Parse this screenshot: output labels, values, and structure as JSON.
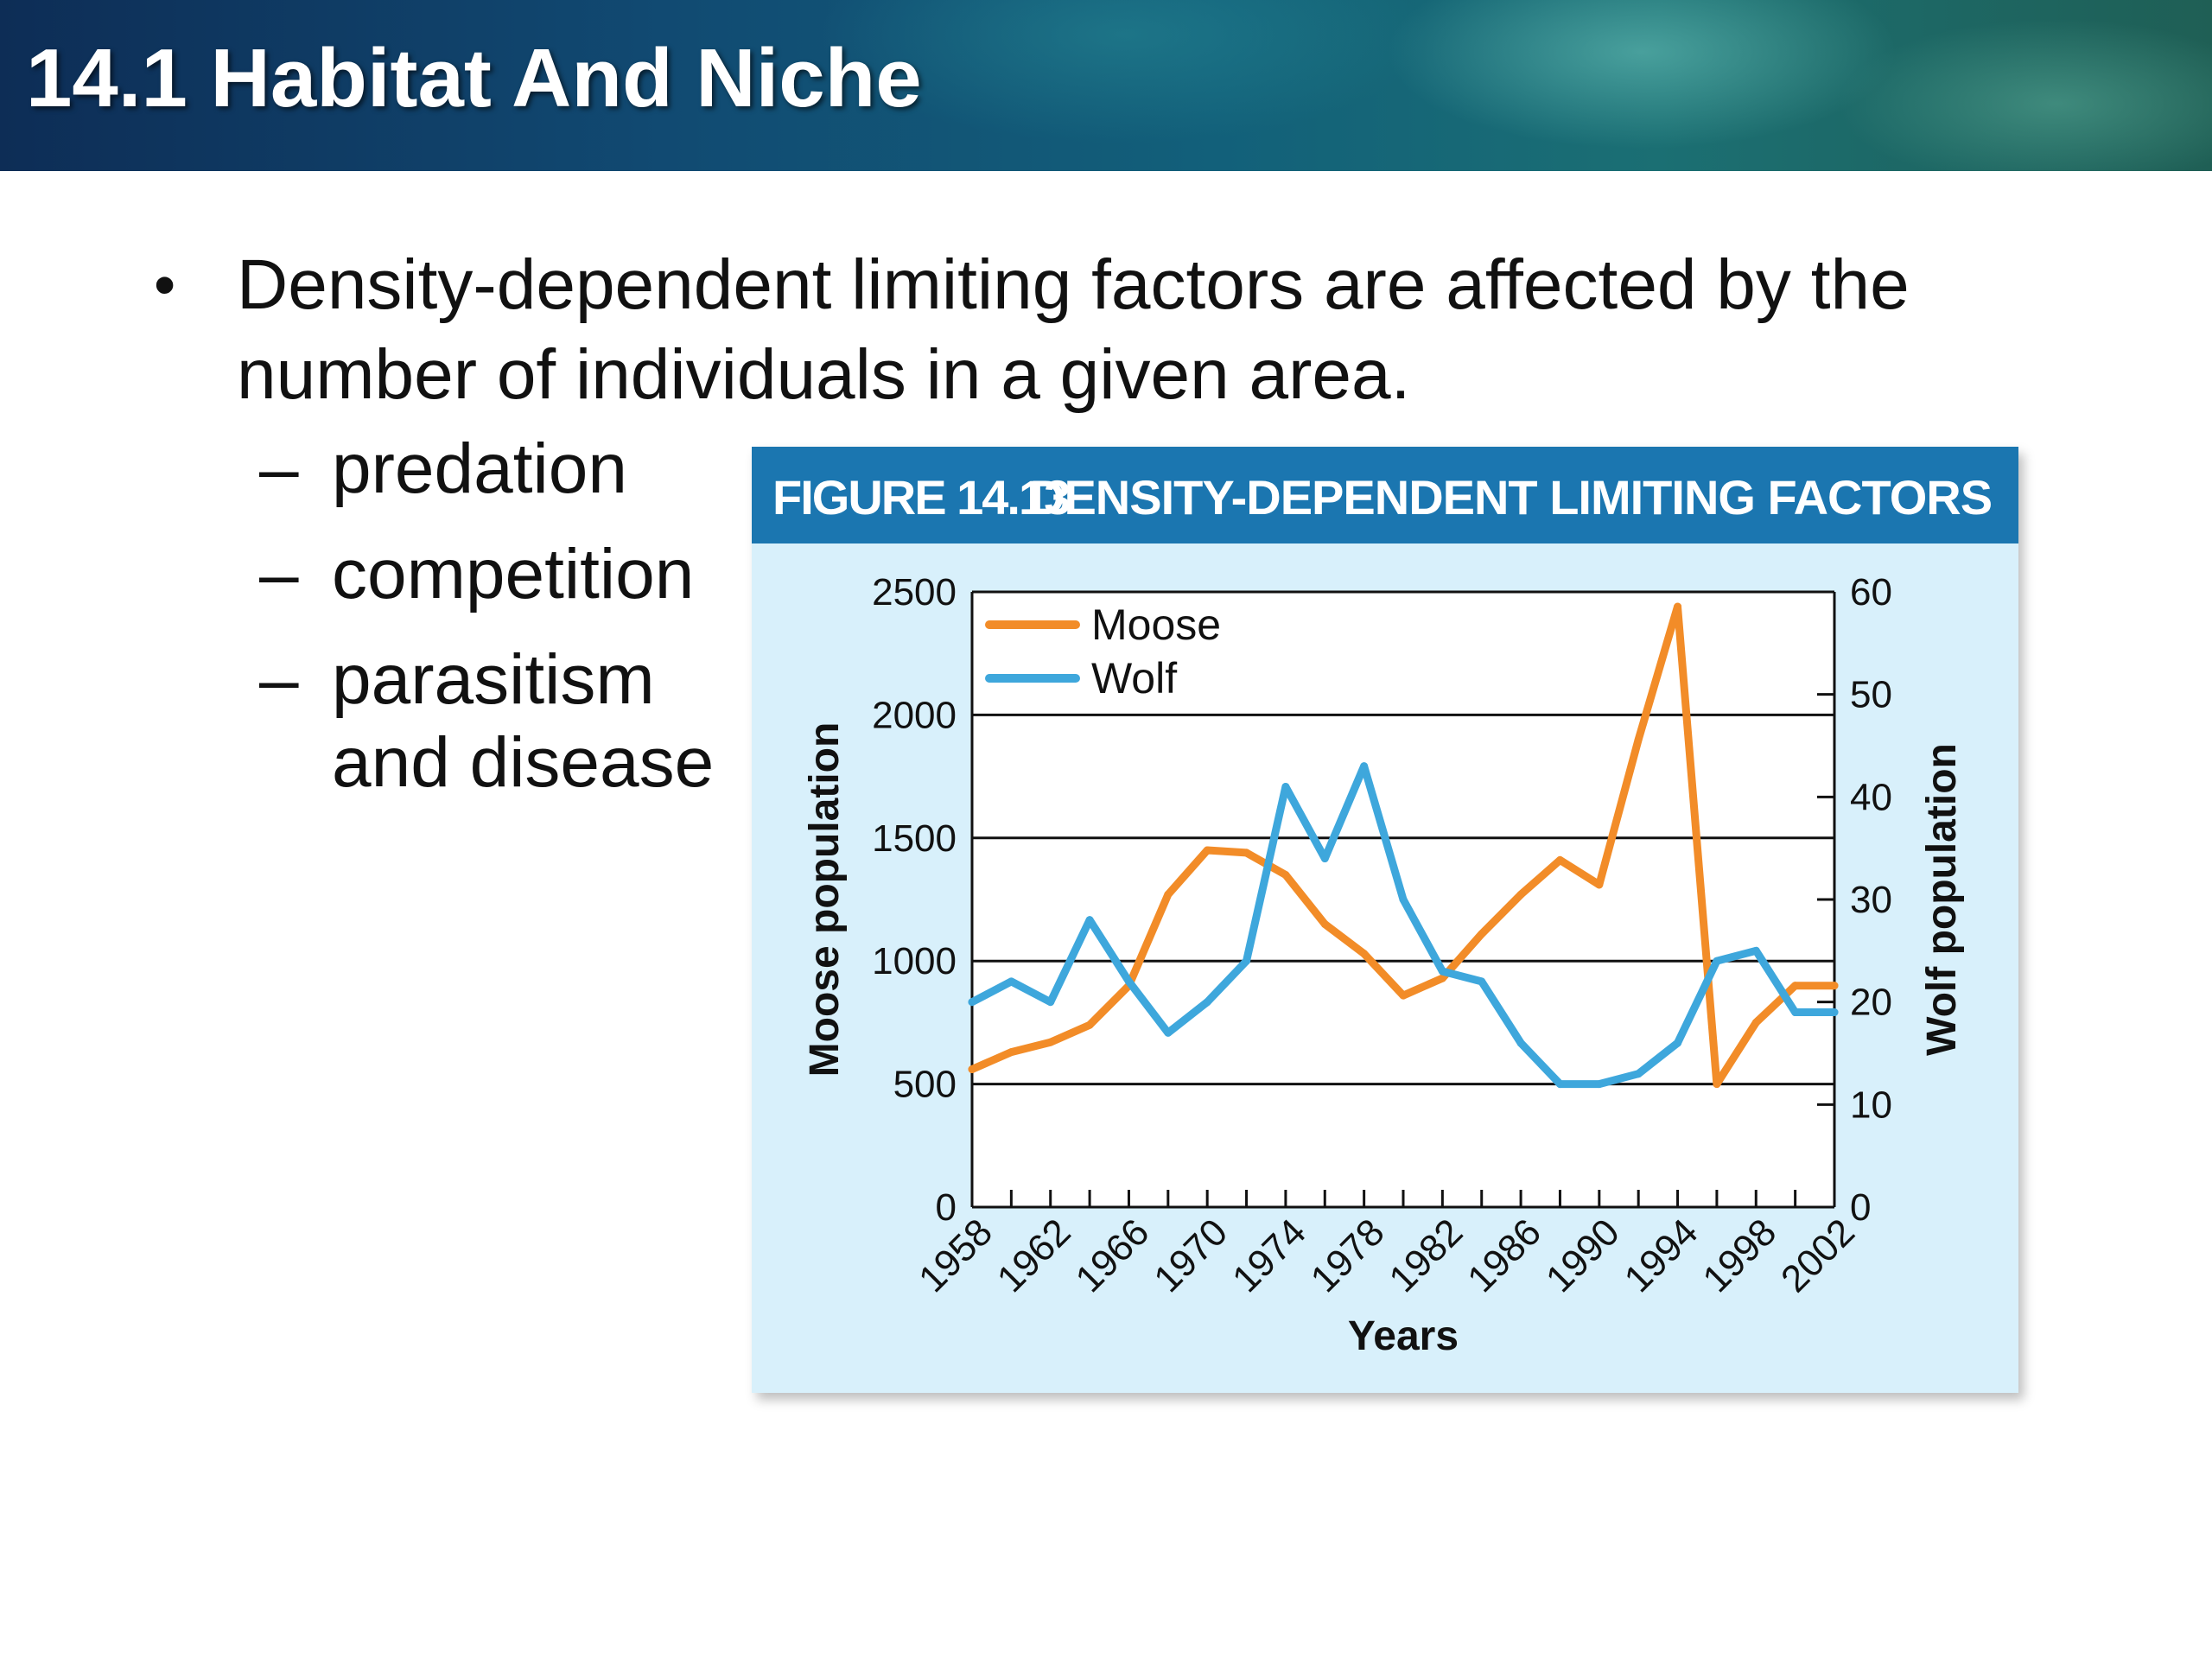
{
  "slide": {
    "title": "14.1 Habitat And Niche",
    "bullet_symbol": "•",
    "bullet": "Density-dependent limiting factors are affected by the number of individuals in a given area.",
    "sub_dash": "–",
    "sub_items": [
      "predation",
      "competition",
      "parasitism and disease"
    ]
  },
  "figure": {
    "label": "FIGURE 14.13",
    "title": "DENSITY-DEPENDENT LIMITING FACTORS"
  },
  "chart_data": {
    "type": "line",
    "x": [
      1958,
      1960,
      1962,
      1964,
      1966,
      1968,
      1970,
      1972,
      1974,
      1976,
      1978,
      1980,
      1982,
      1984,
      1986,
      1988,
      1990,
      1992,
      1994,
      1996,
      1998,
      2000,
      2002
    ],
    "xticks": [
      1958,
      1960,
      1962,
      1964,
      1966,
      1968,
      1970,
      1972,
      1974,
      1976,
      1978,
      1980,
      1982,
      1984,
      1986,
      1988,
      1990,
      1992,
      1994,
      1996,
      1998,
      2000,
      2002
    ],
    "xtick_labels": [
      "1958",
      "1962",
      "1966",
      "1970",
      "1974",
      "1978",
      "1982",
      "1986",
      "1990",
      "1994",
      "1998",
      "2002"
    ],
    "xlabel": "Years",
    "ylabel": "Moose population",
    "y2label": "Wolf population",
    "ylim": [
      0,
      2500
    ],
    "y2lim": [
      0,
      60
    ],
    "yticks": [
      0,
      500,
      1000,
      1500,
      2000,
      2500
    ],
    "y2ticks": [
      0,
      10,
      20,
      30,
      40,
      50,
      60
    ],
    "grid": "horizontal",
    "legend": "top-left",
    "series": [
      {
        "name": "Moose",
        "axis": "left",
        "color": "#f28c28",
        "values": [
          560,
          630,
          670,
          740,
          900,
          1270,
          1450,
          1440,
          1350,
          1150,
          1030,
          860,
          930,
          1110,
          1270,
          1410,
          1310,
          1900,
          2440,
          500,
          750,
          900,
          900
        ]
      },
      {
        "name": "Wolf",
        "axis": "right",
        "color": "#3ea7dc",
        "values": [
          20,
          22,
          20,
          28,
          22,
          17,
          20,
          24,
          41,
          34,
          43,
          30,
          23,
          22,
          16,
          12,
          12,
          13,
          16,
          24,
          25,
          19,
          19
        ]
      }
    ]
  }
}
